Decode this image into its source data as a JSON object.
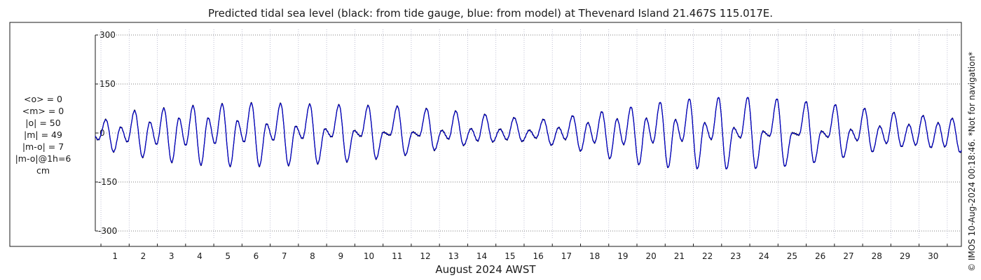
{
  "chart_data": {
    "type": "line",
    "title": "Predicted tidal sea level (black: from tide gauge, blue: from model) at Thevenard Island 21.467S 115.017E.",
    "xlabel": "August 2024 AWST",
    "ylabel": "",
    "x_days": [
      1,
      2,
      3,
      4,
      5,
      6,
      7,
      8,
      9,
      10,
      11,
      12,
      13,
      14,
      15,
      16,
      17,
      18,
      19,
      20,
      21,
      22,
      23,
      24,
      25,
      26,
      27,
      28,
      29,
      30
    ],
    "x_tick_labels": [
      "1",
      "2",
      "3",
      "4",
      "5",
      "6",
      "7",
      "8",
      "9",
      "10",
      "11",
      "12",
      "13",
      "14",
      "15",
      "16",
      "17",
      "18",
      "19",
      "20",
      "21",
      "22",
      "23",
      "24",
      "25",
      "26",
      "27",
      "28",
      "29",
      "30"
    ],
    "x_range_days": [
      0.3,
      31.0
    ],
    "y_tick_values": [
      300,
      150,
      0,
      -150,
      -300
    ],
    "y_tick_labels": [
      "300",
      "150",
      "0",
      "-150",
      "-300"
    ],
    "ylim": [
      -300,
      300
    ],
    "grid": true,
    "units": "cm",
    "series": [
      {
        "color": "#000000",
        "envelope_day": [
          0.3,
          1,
          2,
          3,
          4,
          5,
          6,
          7,
          8,
          9,
          10,
          11,
          12,
          13,
          14,
          15,
          16,
          17,
          18,
          19,
          20,
          21,
          22,
          23,
          24,
          25,
          26,
          27,
          28,
          29,
          30,
          31
        ],
        "high_tide_cm": [
          15,
          65,
          70,
          78,
          85,
          90,
          92,
          90,
          88,
          86,
          84,
          82,
          75,
          68,
          58,
          48,
          40,
          50,
          62,
          75,
          90,
          102,
          108,
          110,
          108,
          100,
          92,
          82,
          70,
          58,
          50,
          42
        ],
        "low_tide_cm": [
          -30,
          -60,
          -75,
          -90,
          -98,
          -102,
          -102,
          -100,
          -95,
          -90,
          -82,
          -72,
          -58,
          -42,
          -30,
          -22,
          -30,
          -45,
          -65,
          -90,
          -102,
          -108,
          -110,
          -110,
          -108,
          -100,
          -88,
          -72,
          -55,
          -40,
          -45,
          -60
        ],
        "secondary_high_cm": [
          10,
          15,
          30,
          45,
          48,
          42,
          30,
          25,
          15,
          10,
          5,
          0,
          5,
          10,
          15,
          10,
          8,
          20,
          35,
          45,
          45,
          40,
          30,
          15,
          5,
          0,
          5,
          10,
          20,
          25,
          30,
          35
        ],
        "secondary_low_cm": [
          -20,
          -25,
          -30,
          -40,
          -35,
          -30,
          -25,
          -20,
          -15,
          -10,
          -10,
          -5,
          -10,
          -20,
          -25,
          -20,
          -15,
          -20,
          -30,
          -35,
          -30,
          -25,
          -20,
          -15,
          -10,
          -5,
          -10,
          -20,
          -30,
          -35,
          -40,
          -45
        ]
      },
      {
        "color": "#0000cc",
        "matches_series": 0
      }
    ],
    "stats": {
      "lines": [
        "<o> = 0",
        "<m> = 0",
        "|o| = 50",
        "|m| = 49",
        "|m-o| = 7",
        "|m-o|@1h=6",
        "cm"
      ]
    }
  },
  "copyright": "© IMOS 10-Aug-2024 00:18:46. *Not for navigation*"
}
